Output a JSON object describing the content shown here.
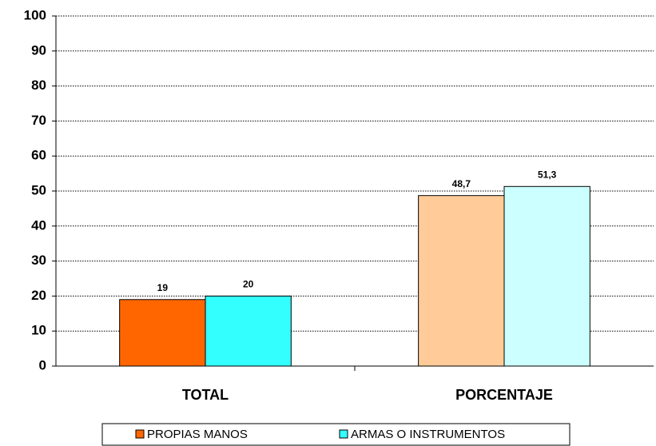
{
  "chart_data": {
    "type": "bar",
    "categories": [
      "TOTAL",
      "PORCENTAJE"
    ],
    "series": [
      {
        "name": "PROPIAS MANOS",
        "color": "#ff6600",
        "point_colors": [
          "#ff6600",
          "#ffcc99"
        ],
        "values": [
          19,
          48.7
        ],
        "value_labels": [
          "19",
          "48,7"
        ]
      },
      {
        "name": "ARMAS O INSTRUMENTOS",
        "color": "#33ffff",
        "point_colors": [
          "#33ffff",
          "#ccffff"
        ],
        "values": [
          20,
          51.3
        ],
        "value_labels": [
          "20",
          "51,3"
        ]
      }
    ],
    "ylim": [
      0,
      100
    ],
    "yticks": [
      0,
      10,
      20,
      30,
      40,
      50,
      60,
      70,
      80,
      90,
      100
    ],
    "grid": true,
    "legend": "bottom"
  }
}
